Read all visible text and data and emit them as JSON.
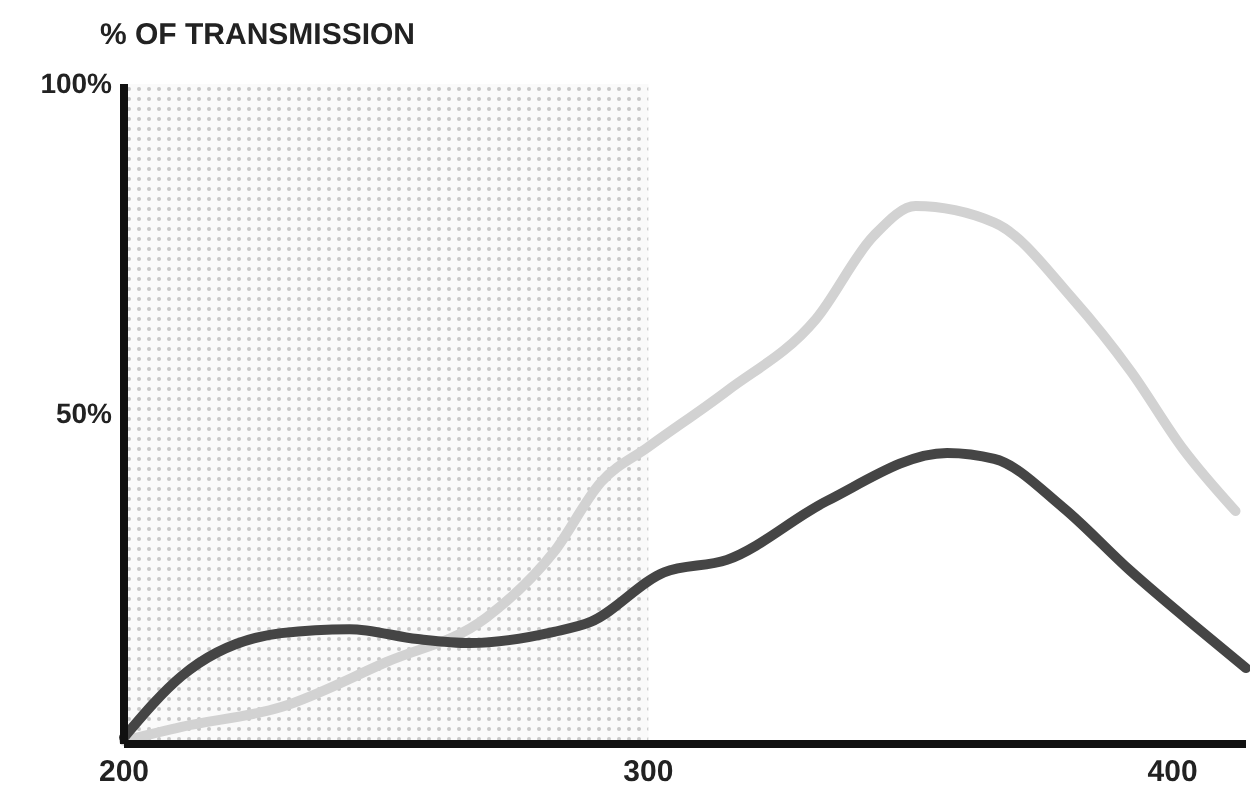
{
  "chart_data": {
    "type": "line",
    "ylabel": "% OF TRANSMISSION",
    "xlim": [
      200,
      414
    ],
    "xticks": [
      200,
      300,
      400
    ],
    "ylim": [
      0,
      100
    ],
    "yticks": [
      {
        "value": 50,
        "label": "50%"
      },
      {
        "value": 100,
        "label": "100%"
      }
    ],
    "bands": [
      {
        "axis": "x",
        "from": 200,
        "to": 300,
        "color": "#c8c8c8"
      }
    ],
    "series": [
      {
        "color": "#d2d2d2",
        "x": [
          200,
          211,
          230,
          250,
          269,
          282,
          291,
          300,
          315,
          332,
          343,
          351,
          366,
          381,
          392,
          402,
          412
        ],
        "values": [
          0.5,
          2.6,
          5.6,
          12.4,
          19.1,
          29.1,
          39.7,
          45,
          53.5,
          64.4,
          77,
          81.5,
          79,
          67.4,
          56.5,
          44.7,
          35.3
        ]
      },
      {
        "color": "#454545",
        "x": [
          200,
          211,
          230,
          243,
          256,
          266,
          282,
          289,
          303,
          315,
          334,
          357,
          366,
          379,
          392,
          405,
          414
        ],
        "values": [
          1,
          10.3,
          16.8,
          17.4,
          15.9,
          15.3,
          17,
          18.5,
          26,
          27.9,
          36.8,
          44.1,
          43.2,
          35.9,
          26.2,
          17.4,
          11.5
        ]
      }
    ]
  }
}
